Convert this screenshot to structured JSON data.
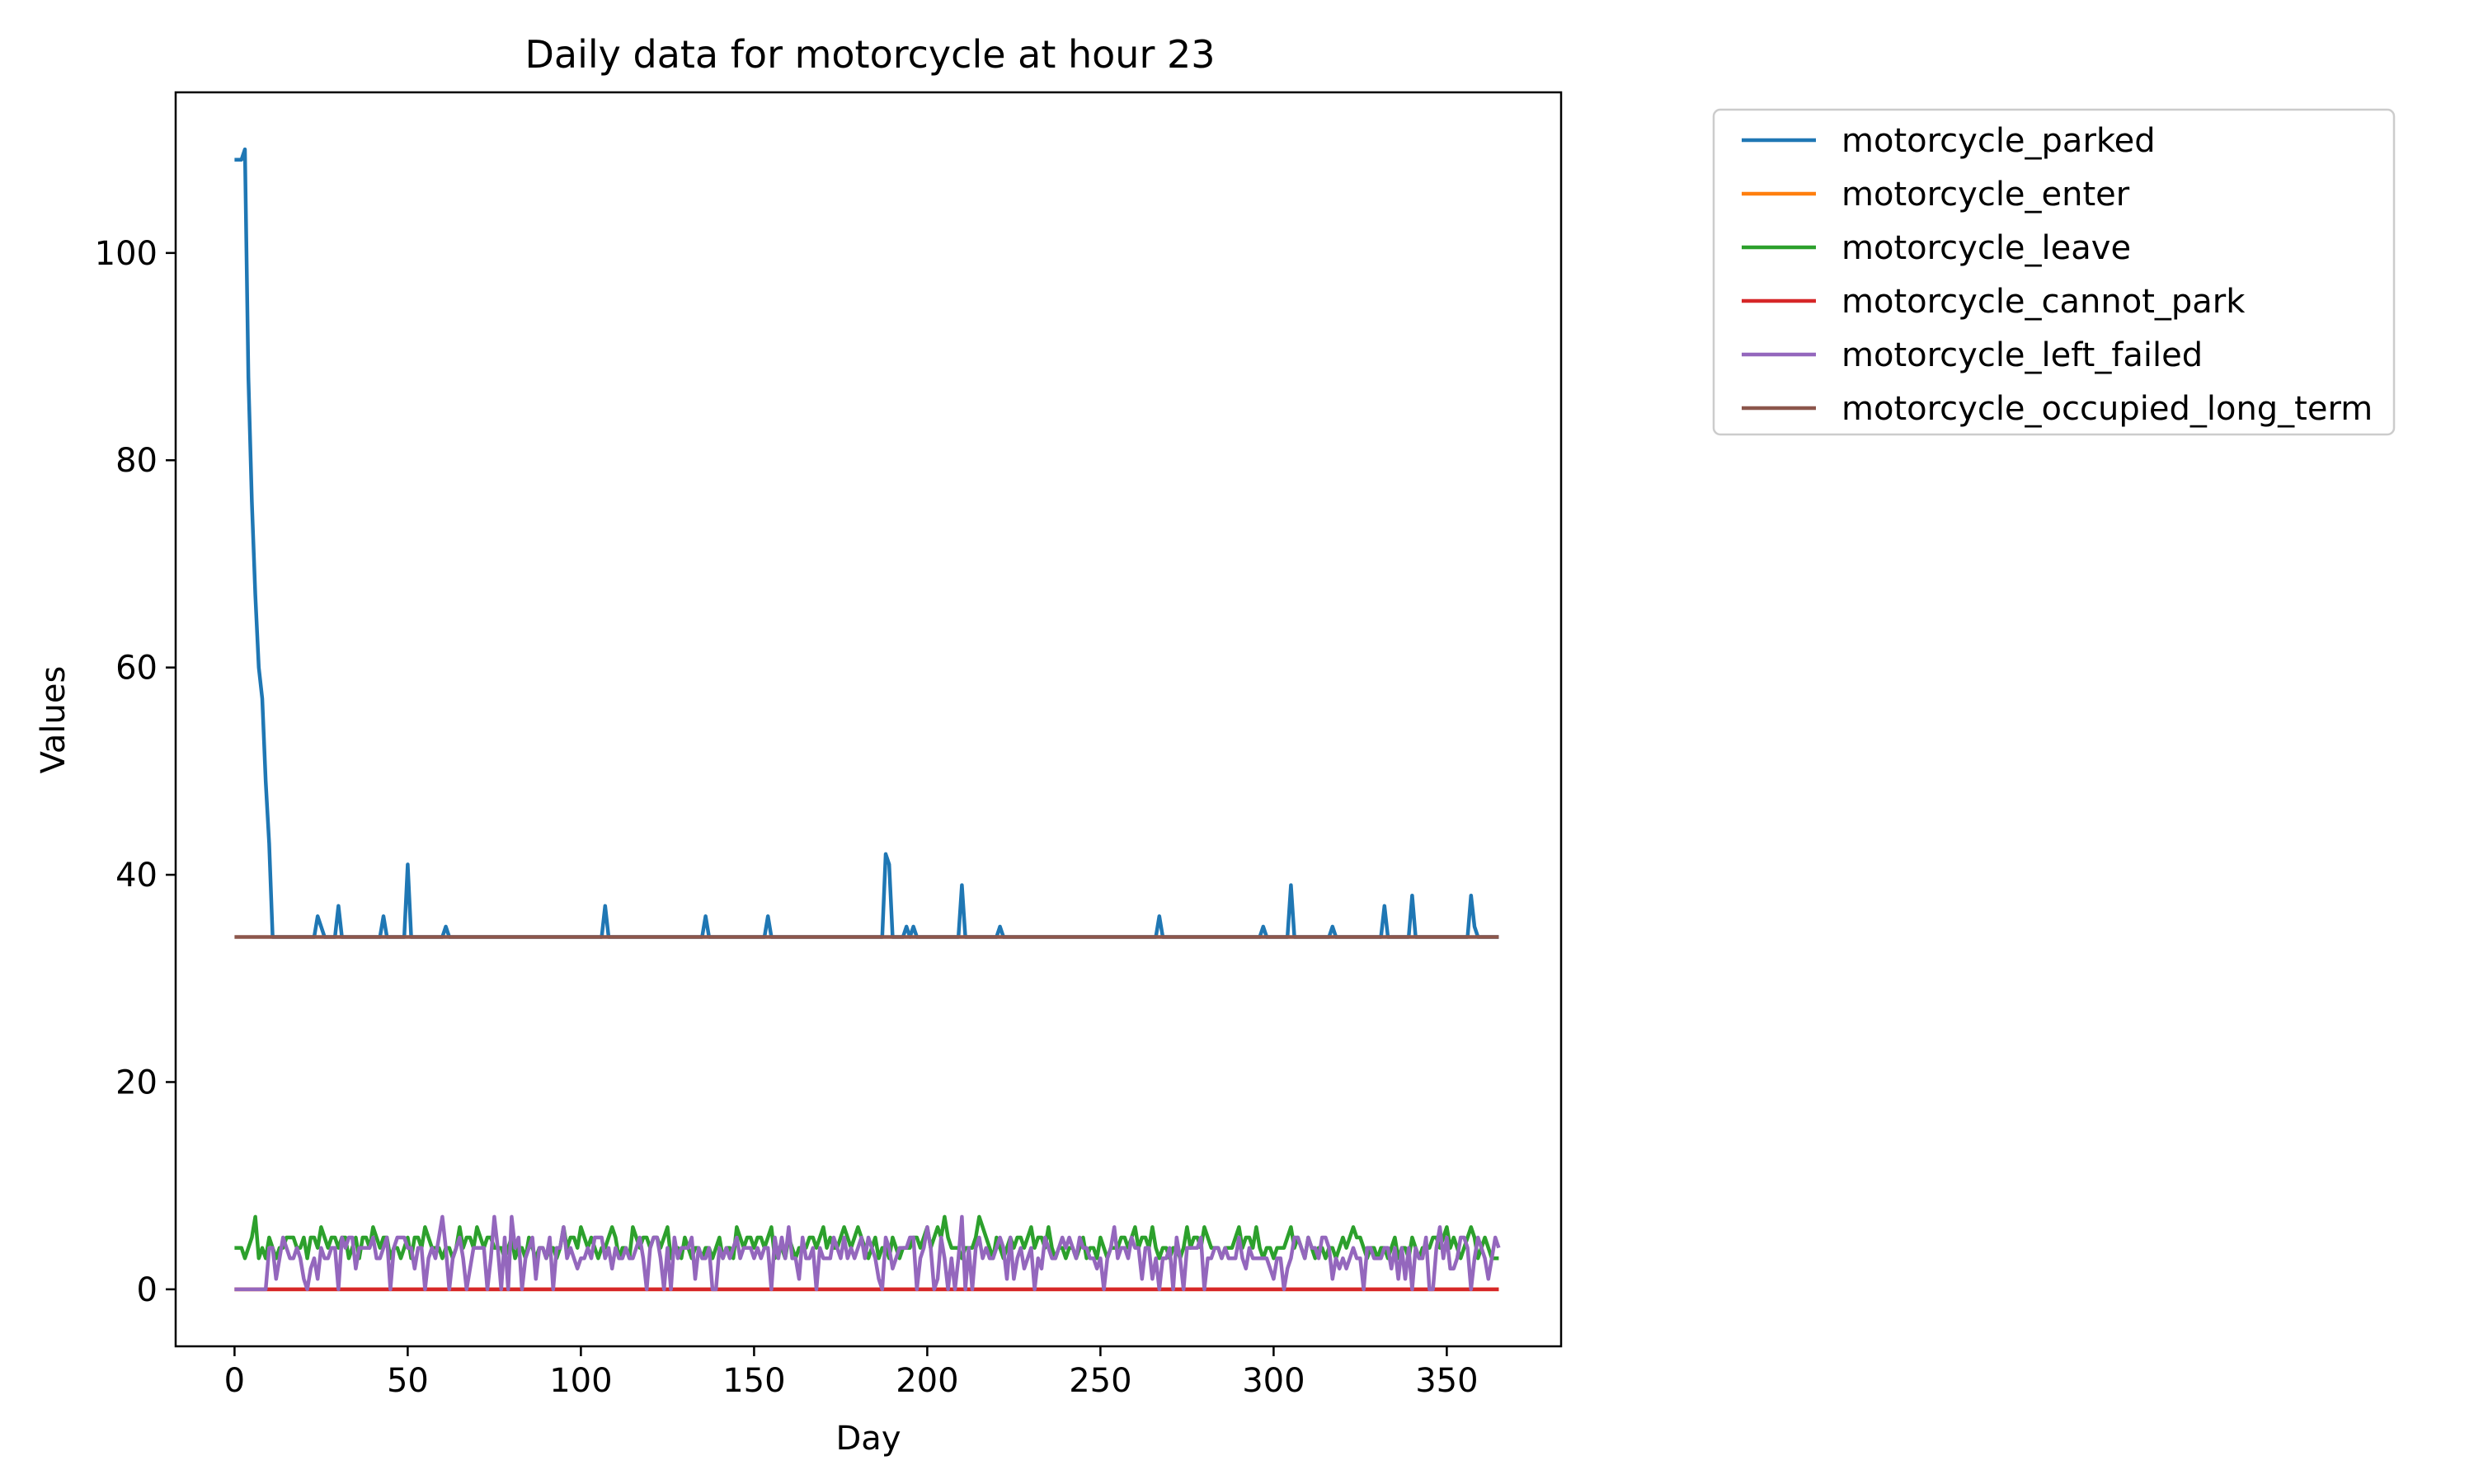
{
  "chart_data": {
    "type": "line",
    "title": "Daily data for motorcycle at hour 23",
    "xlabel": "Day",
    "ylabel": "Values",
    "xlim": [
      -17,
      383
    ],
    "ylim": [
      -5.5,
      115.5
    ],
    "xticks": [
      0,
      50,
      100,
      150,
      200,
      250,
      300,
      350
    ],
    "yticks": [
      0,
      20,
      40,
      60,
      80,
      100
    ],
    "grid": false,
    "legend_position": "outside top-right",
    "series": [
      {
        "name": "motorcycle_parked",
        "color": "#1f77b4",
        "baseline": 34,
        "points": [
          [
            0,
            109
          ],
          [
            1,
            109
          ],
          [
            2,
            109
          ],
          [
            3,
            110
          ],
          [
            4,
            88
          ],
          [
            5,
            76
          ],
          [
            6,
            67
          ],
          [
            7,
            60
          ],
          [
            8,
            57
          ],
          [
            9,
            49
          ],
          [
            10,
            43
          ],
          [
            11,
            34
          ],
          [
            23,
            34
          ],
          [
            24,
            36
          ],
          [
            25,
            35
          ],
          [
            26,
            34
          ],
          [
            29,
            34
          ],
          [
            30,
            37
          ],
          [
            31,
            34
          ],
          [
            42,
            34
          ],
          [
            43,
            36
          ],
          [
            44,
            34
          ],
          [
            49,
            34
          ],
          [
            50,
            41
          ],
          [
            51,
            34
          ],
          [
            60,
            34
          ],
          [
            61,
            35
          ],
          [
            62,
            34
          ],
          [
            106,
            34
          ],
          [
            107,
            37
          ],
          [
            108,
            34
          ],
          [
            135,
            34
          ],
          [
            136,
            36
          ],
          [
            137,
            34
          ],
          [
            153,
            34
          ],
          [
            154,
            36
          ],
          [
            155,
            34
          ],
          [
            187,
            34
          ],
          [
            188,
            42
          ],
          [
            189,
            41
          ],
          [
            190,
            34
          ],
          [
            193,
            34
          ],
          [
            194,
            35
          ],
          [
            195,
            34
          ],
          [
            196,
            35
          ],
          [
            197,
            34
          ],
          [
            209,
            34
          ],
          [
            210,
            39
          ],
          [
            211,
            34
          ],
          [
            220,
            34
          ],
          [
            221,
            35
          ],
          [
            222,
            34
          ],
          [
            266,
            34
          ],
          [
            267,
            36
          ],
          [
            268,
            34
          ],
          [
            296,
            34
          ],
          [
            297,
            35
          ],
          [
            298,
            34
          ],
          [
            304,
            34
          ],
          [
            305,
            39
          ],
          [
            306,
            34
          ],
          [
            316,
            34
          ],
          [
            317,
            35
          ],
          [
            318,
            34
          ],
          [
            331,
            34
          ],
          [
            332,
            37
          ],
          [
            333,
            34
          ],
          [
            339,
            34
          ],
          [
            340,
            38
          ],
          [
            341,
            34
          ],
          [
            356,
            34
          ],
          [
            357,
            38
          ],
          [
            358,
            35
          ],
          [
            359,
            34
          ],
          [
            365,
            34
          ]
        ]
      },
      {
        "name": "motorcycle_enter",
        "color": "#ff7f0e",
        "points": [
          [
            0,
            0
          ],
          [
            365,
            0
          ]
        ]
      },
      {
        "name": "motorcycle_leave",
        "color": "#2ca02c",
        "points": [
          [
            0,
            4
          ],
          [
            2,
            4
          ],
          [
            3,
            3
          ],
          [
            4,
            4
          ],
          [
            5,
            5
          ],
          [
            6,
            7
          ],
          [
            7,
            3
          ],
          [
            8,
            4
          ],
          [
            9,
            4
          ],
          [
            14,
            4
          ],
          [
            16,
            5
          ],
          [
            20,
            4
          ],
          [
            24,
            5
          ],
          [
            30,
            5
          ],
          [
            34,
            4
          ],
          [
            40,
            5
          ],
          [
            48,
            4
          ],
          [
            55,
            5
          ],
          [
            60,
            4
          ],
          [
            70,
            5
          ],
          [
            80,
            4
          ],
          [
            90,
            4
          ],
          [
            100,
            5
          ],
          [
            107,
            4
          ],
          [
            109,
            6
          ],
          [
            110,
            4
          ],
          [
            120,
            5
          ],
          [
            130,
            4
          ],
          [
            140,
            4
          ],
          [
            150,
            5
          ],
          [
            160,
            4
          ],
          [
            170,
            5
          ],
          [
            174,
            4
          ],
          [
            176,
            6
          ],
          [
            178,
            4
          ],
          [
            180,
            6
          ],
          [
            182,
            4
          ],
          [
            190,
            4
          ],
          [
            200,
            5
          ],
          [
            205,
            6
          ],
          [
            208,
            4
          ],
          [
            211,
            4
          ],
          [
            216,
            6
          ],
          [
            218,
            4
          ],
          [
            230,
            5
          ],
          [
            240,
            4
          ],
          [
            250,
            4
          ],
          [
            260,
            5
          ],
          [
            270,
            4
          ],
          [
            280,
            5
          ],
          [
            285,
            4
          ],
          [
            290,
            5
          ],
          [
            300,
            4
          ],
          [
            305,
            5
          ],
          [
            310,
            4
          ],
          [
            320,
            4
          ],
          [
            323,
            6
          ],
          [
            325,
            4
          ],
          [
            340,
            4
          ],
          [
            350,
            5
          ],
          [
            355,
            4
          ],
          [
            357,
            6
          ],
          [
            359,
            3
          ],
          [
            361,
            5
          ],
          [
            363,
            3
          ],
          [
            365,
            3
          ]
        ]
      },
      {
        "name": "motorcycle_cannot_park",
        "color": "#d62728",
        "points": [
          [
            0,
            0
          ],
          [
            365,
            0
          ]
        ]
      },
      {
        "name": "motorcycle_left_failed",
        "color": "#9467bd",
        "seed": 23,
        "start_zero_days": 10,
        "min": 0,
        "max": 7,
        "base": 4,
        "samples": [
          [
            60,
            7
          ],
          [
            75,
            7
          ],
          [
            80,
            7
          ],
          [
            95,
            6
          ],
          [
            160,
            6
          ],
          [
            200,
            6
          ],
          [
            210,
            7
          ],
          [
            254,
            6
          ],
          [
            348,
            6
          ]
        ]
      },
      {
        "name": "motorcycle_occupied_long_term",
        "color": "#8c564b",
        "points": [
          [
            0,
            34
          ],
          [
            365,
            34
          ]
        ]
      }
    ]
  }
}
